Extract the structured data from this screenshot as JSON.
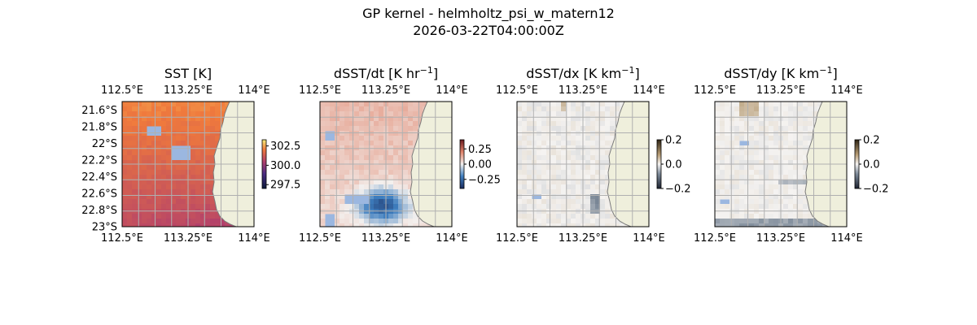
{
  "figure": {
    "title_line1": "GP kernel - helmholtz_psi_w_matern12",
    "title_line2": "2026-03-22T04:00:00Z"
  },
  "colors": {
    "ocean": "#9bb7e0",
    "land": "#efefdc",
    "coast": "#7b7b7b",
    "grid": "#b0b0b0"
  },
  "chart_data": [
    {
      "type": "heatmap",
      "title": "SST [K]",
      "colormap": "thermal",
      "xlim": [
        112.5,
        114.0
      ],
      "ylim": [
        -23.0,
        -21.5
      ],
      "x_ticks": [
        "112.5°E",
        "113.25°E",
        "114°E"
      ],
      "x_tick_values": [
        112.5,
        113.25,
        114.0
      ],
      "y_ticks": [
        "21.6°S",
        "21.8°S",
        "22°S",
        "22.2°S",
        "22.4°S",
        "22.6°S",
        "22.8°S",
        "23°S"
      ],
      "y_tick_values": [
        -21.6,
        -21.8,
        -22.0,
        -22.2,
        -22.4,
        -22.6,
        -22.8,
        -23.0
      ],
      "colorbar": {
        "range": [
          297.0,
          303.3
        ],
        "ticks": [
          302.5,
          300.0,
          297.5
        ],
        "tick_labels": [
          "302.5",
          "300.0",
          "297.5"
        ]
      },
      "grid": true
    },
    {
      "type": "heatmap",
      "title_main": "dSST/dt [K hr",
      "title_sup": "−1",
      "title_end": "]",
      "colormap": "balance",
      "xlim": [
        112.5,
        114.0
      ],
      "ylim": [
        -23.0,
        -21.5
      ],
      "x_ticks": [
        "112.5°E",
        "113.25°E",
        "114°E"
      ],
      "x_tick_values": [
        112.5,
        113.25,
        114.0
      ],
      "colorbar": {
        "range": [
          -0.4,
          0.4
        ],
        "ticks": [
          0.25,
          0.0,
          -0.25
        ],
        "tick_labels": [
          "0.25",
          "0.00",
          "−0.25"
        ]
      },
      "grid": true
    },
    {
      "type": "heatmap",
      "title_main": "dSST/dx [K km",
      "title_sup": "−1",
      "title_end": "]",
      "colormap": "diff",
      "xlim": [
        112.5,
        114.0
      ],
      "ylim": [
        -23.0,
        -21.5
      ],
      "x_ticks": [
        "112.5°E",
        "113.25°E",
        "114°E"
      ],
      "x_tick_values": [
        112.5,
        113.25,
        114.0
      ],
      "colorbar": {
        "range": [
          -0.2,
          0.2
        ],
        "ticks": [
          0.2,
          0.0,
          -0.2
        ],
        "tick_labels": [
          "0.2",
          "0.0",
          "−0.2"
        ]
      },
      "grid": true
    },
    {
      "type": "heatmap",
      "title_main": "dSST/dy [K km",
      "title_sup": "−1",
      "title_end": "]",
      "colormap": "diff",
      "xlim": [
        112.5,
        114.0
      ],
      "ylim": [
        -23.0,
        -21.5
      ],
      "x_ticks": [
        "112.5°E",
        "113.25°E",
        "114°E"
      ],
      "x_tick_values": [
        112.5,
        113.25,
        114.0
      ],
      "colorbar": {
        "range": [
          -0.2,
          0.2
        ],
        "ticks": [
          0.2,
          0.0,
          -0.2
        ],
        "tick_labels": [
          "0.2",
          "0.0",
          "−0.2"
        ]
      },
      "grid": true
    }
  ]
}
